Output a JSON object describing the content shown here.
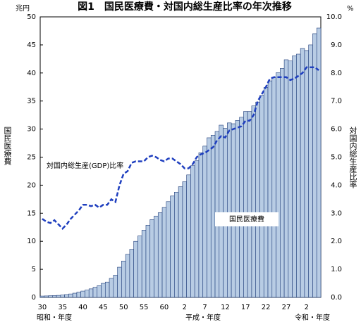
{
  "chart_data": {
    "type": "bar",
    "title": "図1　国民医療費・対国内総生産比率の年次推移",
    "y_unit": "兆円",
    "y2_unit": "%",
    "y_label": "国民医療費",
    "y2_label": "対国内総生産比率",
    "era_labels": [
      "昭和・年度",
      "平成・年度",
      "令和・年度"
    ],
    "categories": [
      "30",
      null,
      null,
      null,
      null,
      "35",
      null,
      null,
      null,
      null,
      "40",
      null,
      null,
      null,
      null,
      "45",
      null,
      null,
      null,
      null,
      "50",
      null,
      null,
      null,
      null,
      "55",
      null,
      null,
      null,
      null,
      "60",
      null,
      null,
      null,
      null,
      "2",
      null,
      null,
      null,
      null,
      "7",
      null,
      null,
      null,
      null,
      "12",
      null,
      null,
      null,
      null,
      "17",
      null,
      null,
      null,
      null,
      "22",
      null,
      null,
      null,
      null,
      "27",
      null,
      null,
      null,
      null,
      "2",
      null,
      null,
      null
    ],
    "series": [
      {
        "name": "国民医療費",
        "type": "bar",
        "color": "#b8cce4",
        "values": [
          0.24,
          0.26,
          0.29,
          0.32,
          0.36,
          0.41,
          0.51,
          0.61,
          0.75,
          0.94,
          1.12,
          1.3,
          1.52,
          1.81,
          2.08,
          2.5,
          2.73,
          3.38,
          3.96,
          5.38,
          6.48,
          7.68,
          8.57,
          10.0,
          10.95,
          11.98,
          12.87,
          13.86,
          14.5,
          15.09,
          16.02,
          17.07,
          18.07,
          18.76,
          19.73,
          20.61,
          21.83,
          23.48,
          24.36,
          25.79,
          26.96,
          28.45,
          28.91,
          29.58,
          30.7,
          30.14,
          31.1,
          30.95,
          31.54,
          32.11,
          33.13,
          33.13,
          34.14,
          34.81,
          36.0,
          37.42,
          38.59,
          39.21,
          40.06,
          40.81,
          42.36,
          42.14,
          43.07,
          43.36,
          44.39,
          44.0,
          45.0,
          47.0,
          48.0
        ]
      },
      {
        "name": "対国内総生産(GDP)比率",
        "type": "line",
        "axis": "y2",
        "color": "#1f3fbf",
        "values": [
          2.8,
          2.7,
          2.65,
          2.75,
          2.6,
          2.45,
          2.6,
          2.8,
          2.95,
          3.1,
          3.3,
          3.3,
          3.25,
          3.3,
          3.2,
          3.3,
          3.3,
          3.5,
          3.4,
          4.0,
          4.4,
          4.5,
          4.8,
          4.85,
          4.85,
          4.85,
          5.0,
          5.05,
          5.0,
          4.9,
          4.85,
          4.95,
          4.95,
          4.85,
          4.75,
          4.6,
          4.6,
          4.75,
          5.0,
          5.1,
          5.15,
          5.25,
          5.35,
          5.6,
          5.75,
          5.7,
          5.95,
          6.0,
          6.05,
          6.1,
          6.3,
          6.3,
          6.5,
          7.0,
          7.25,
          7.5,
          7.8,
          7.85,
          7.85,
          7.85,
          7.85,
          7.75,
          7.8,
          7.9,
          8.0,
          8.2,
          8.2,
          8.2,
          8.1
        ]
      }
    ],
    "ylim": [
      0,
      50
    ],
    "yticks": [
      0,
      5,
      10,
      15,
      20,
      25,
      30,
      35,
      40,
      45,
      50
    ],
    "y2lim": [
      0,
      10
    ],
    "y2ticks": [
      {
        "value": 0,
        "label": "0.0"
      },
      {
        "value": 1,
        "label": "1.0"
      },
      {
        "value": 2,
        "label": "2.0"
      },
      {
        "value": 3,
        "label": "3.0"
      },
      {
        "value": 4,
        "label": "4.0"
      },
      {
        "value": 5,
        "label": "5.0"
      },
      {
        "value": 6,
        "label": "6.0"
      },
      {
        "value": 7,
        "label": "7.0"
      },
      {
        "value": 8,
        "label": "8.0"
      },
      {
        "value": 9,
        "label": "9.0"
      },
      {
        "value": 10,
        "label": "10.0"
      }
    ],
    "grid": false
  }
}
